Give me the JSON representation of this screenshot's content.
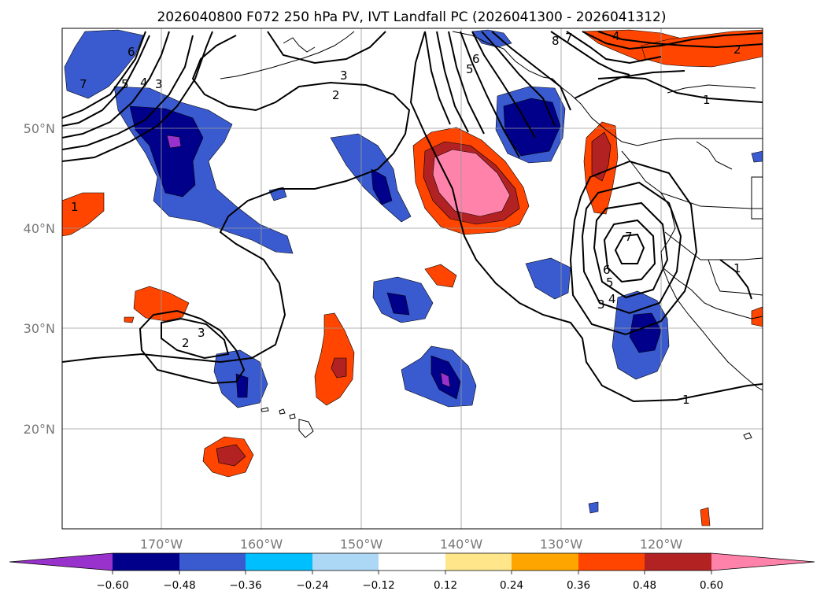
{
  "title": "2026040800 F072 250 hPa PV, IVT Landfall PC (2026041300 - 2026041312)",
  "lat_labels": [
    "50°N",
    "40°N",
    "30°N",
    "20°N"
  ],
  "lon_labels": [
    "170°W",
    "160°W",
    "150°W",
    "140°W",
    "130°W",
    "120°W"
  ],
  "colorbar": {
    "ticks": [
      "−0.60",
      "−0.48",
      "−0.36",
      "−0.24",
      "−0.12",
      "0.12",
      "0.24",
      "0.36",
      "0.48",
      "0.60"
    ],
    "colors": [
      "#9932cc",
      "#00008b",
      "#3a5bd0",
      "#00bfff",
      "#add8f5",
      "#ffffff",
      "#ffe68a",
      "#ffa500",
      "#ff4500",
      "#b22222",
      "#ff82ab"
    ]
  },
  "contour_labels": [
    "7",
    "6",
    "5",
    "4",
    "3",
    "3",
    "2",
    "5",
    "6",
    "8",
    "7",
    "4",
    "2",
    "1",
    "1",
    "7",
    "6",
    "5",
    "4",
    "3",
    "1",
    "2",
    "3",
    "1"
  ]
}
